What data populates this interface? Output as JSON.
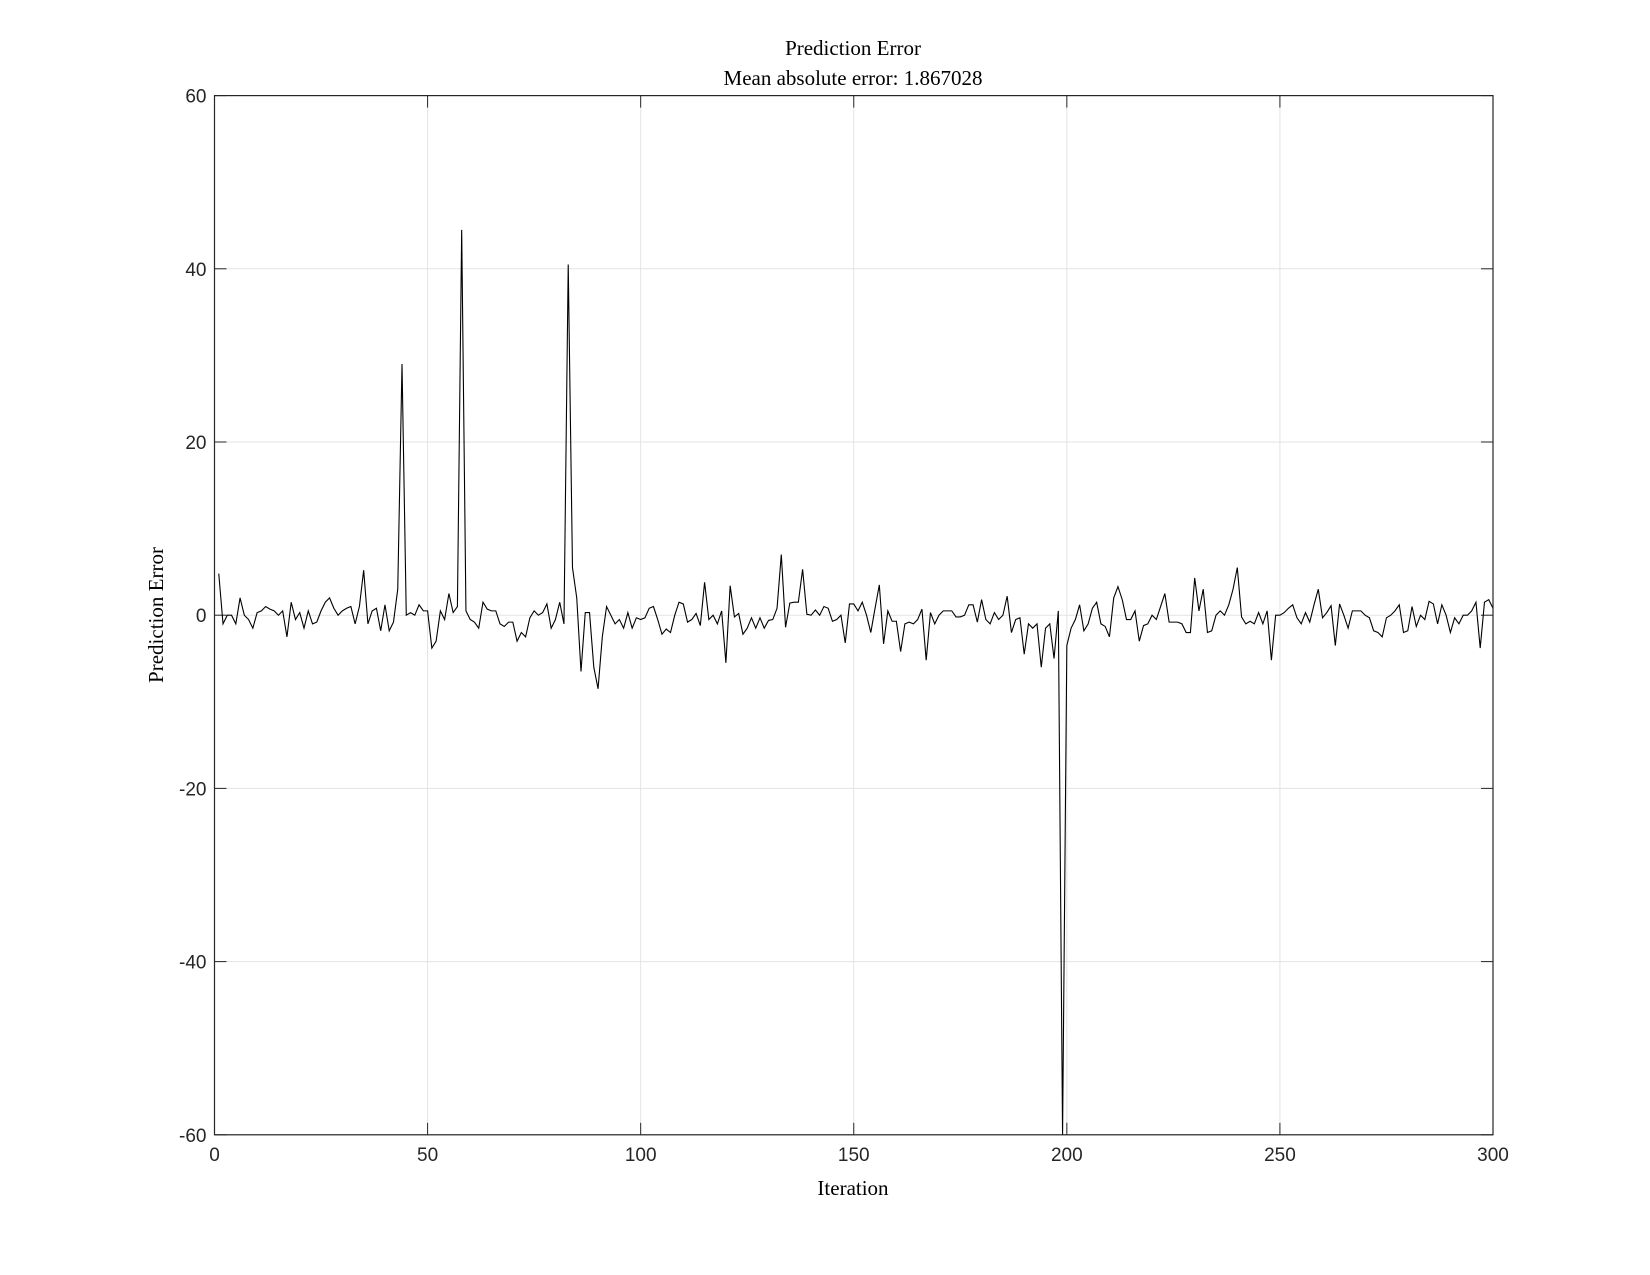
{
  "chart_data": {
    "type": "line",
    "title": "Prediction Error",
    "subtitle": "Mean absolute error: 1.867028",
    "xlabel": "Iteration",
    "ylabel": "Prediction Error",
    "xlim": [
      0,
      300
    ],
    "ylim": [
      -60,
      60
    ],
    "xticks": [
      "0",
      "50",
      "100",
      "150",
      "200",
      "250",
      "300"
    ],
    "yticks": [
      "-60",
      "-40",
      "-20",
      "0",
      "20",
      "40",
      "60"
    ],
    "grid": true,
    "line_color": "#000000",
    "series": [
      {
        "x_start": 1,
        "values": [
          4.8,
          -1,
          0,
          0,
          -1,
          2,
          0,
          -0.5,
          -1.5,
          0.3,
          0.5,
          1,
          0.7,
          0.5,
          0,
          0.5,
          -2.5,
          1.5,
          -0.5,
          0.3,
          -1.5,
          0.5,
          -1,
          -0.8,
          0.5,
          1.5,
          2,
          0.8,
          0,
          0.5,
          0.8,
          1,
          -1,
          1,
          5.2,
          -1,
          0.5,
          0.8,
          -1.8,
          1.2,
          -1.8,
          -0.8,
          3,
          29,
          0,
          0.3,
          0,
          1.2,
          0.5,
          0.5,
          -3.8,
          -3,
          0.5,
          -0.5,
          2.5,
          0.3,
          1,
          44.5,
          0.5,
          -0.5,
          -0.8,
          -1.5,
          1.5,
          0.7,
          0.5,
          0.5,
          -1,
          -1.3,
          -0.8,
          -0.8,
          -3,
          -2,
          -2.5,
          -0.3,
          0.5,
          0,
          0.3,
          1.3,
          -1.5,
          -0.5,
          1.5,
          -1,
          40.5,
          5.5,
          2,
          -6.5,
          0.3,
          0.3,
          -6,
          -8.5,
          -2.5,
          1,
          0,
          -1,
          -0.5,
          -1.5,
          0.3,
          -1.5,
          -0.3,
          -0.5,
          -0.3,
          0.8,
          1,
          -0.5,
          -2.2,
          -1.6,
          -2,
          0,
          1.5,
          1.3,
          -0.8,
          -0.5,
          0.2,
          -1.2,
          3.8,
          -0.5,
          0,
          -1,
          0.5,
          -5.5,
          3.4,
          -0.2,
          0.2,
          -2.2,
          -1.5,
          -0.3,
          -1.5,
          -0.3,
          -1.5,
          -0.6,
          -0.5,
          0.8,
          7,
          -1.4,
          1.4,
          1.5,
          1.5,
          5.3,
          0.1,
          0,
          0.6,
          0,
          1,
          0.8,
          -0.7,
          -0.5,
          0,
          -3.2,
          1.3,
          1.3,
          0.5,
          1.5,
          0,
          -2,
          0.8,
          3.5,
          -3.3,
          0.5,
          -0.7,
          -0.7,
          -4.2,
          -1,
          -0.8,
          -1,
          -0.5,
          0.7,
          -5.2,
          0.3,
          -1,
          0,
          0.5,
          0.5,
          0.5,
          -0.2,
          -0.2,
          0,
          1.2,
          1.2,
          -0.8,
          1.8,
          -0.5,
          -1,
          0.3,
          -0.5,
          0,
          2.2,
          -2,
          -0.5,
          -0.3,
          -4.5,
          -1,
          -1.5,
          -1,
          -6,
          -1.5,
          -1,
          -5,
          0.5,
          -60,
          -3.5,
          -1.5,
          -0.5,
          1.2,
          -1.8,
          -1,
          0.8,
          1.5,
          -1,
          -1.3,
          -2.5,
          2,
          3.3,
          1.8,
          -0.5,
          -0.5,
          0.5,
          -3,
          -1.2,
          -1,
          0,
          -0.5,
          1,
          2.5,
          -0.8,
          -0.8,
          -0.8,
          -1,
          -2,
          -2,
          4.3,
          0.5,
          3,
          -2,
          -1.8,
          0,
          0.5,
          0,
          1.2,
          3,
          5.5,
          -0.2,
          -1,
          -0.7,
          -1,
          0.3,
          -1,
          0.5,
          -5.2,
          0,
          0,
          0.3,
          0.8,
          1.2,
          -0.3,
          -1,
          0.3,
          -0.8,
          1.2,
          3,
          -0.3,
          0.3,
          1.1,
          -3.5,
          1.3,
          0,
          -1.5,
          0.5,
          0.5,
          0.5,
          0,
          -0.3,
          -1.8,
          -2,
          -2.5,
          -0.3,
          0,
          0.5,
          1.2,
          -2,
          -1.8,
          1,
          -1.3,
          0,
          -0.5,
          1.6,
          1.3,
          -1,
          1.2,
          0,
          -2,
          -0.3,
          -1,
          0,
          0,
          0.5,
          1.5,
          -3.8,
          1.5,
          1.8,
          0.8
        ]
      }
    ]
  }
}
